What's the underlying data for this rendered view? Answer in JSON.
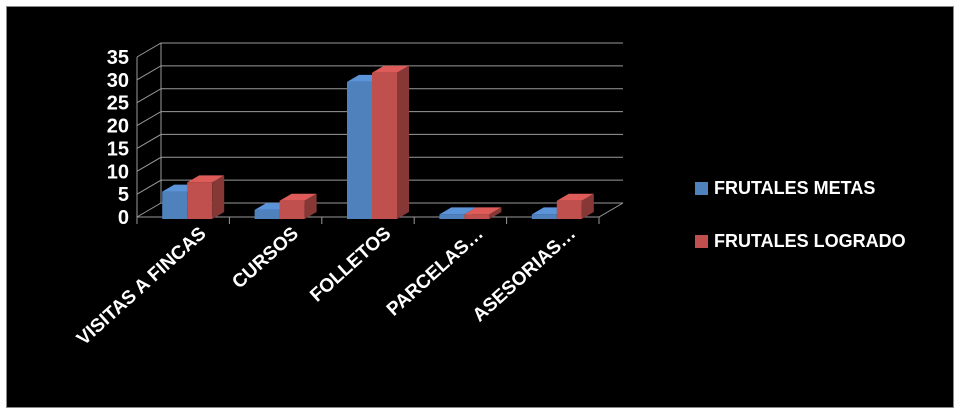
{
  "chart_data": {
    "type": "bar",
    "style": "3d-clustered-column",
    "categories": [
      "VISITAS A FINCAS",
      "CURSOS",
      "FOLLETOS",
      "PARCELAS…",
      "ASESORIAS…"
    ],
    "series": [
      {
        "name": "FRUTALES METAS",
        "values": [
          6,
          2,
          30,
          1,
          1
        ],
        "color": "#4f81bd"
      },
      {
        "name": "FRUTALES LOGRADO",
        "values": [
          8,
          4,
          32,
          1,
          4
        ],
        "color": "#c0504d"
      }
    ],
    "ylim": [
      0,
      35
    ],
    "yticks": [
      "0",
      "5",
      "10",
      "15",
      "20",
      "25",
      "30",
      "35"
    ],
    "grid": true,
    "legend_position": "right",
    "background": "#000000"
  }
}
